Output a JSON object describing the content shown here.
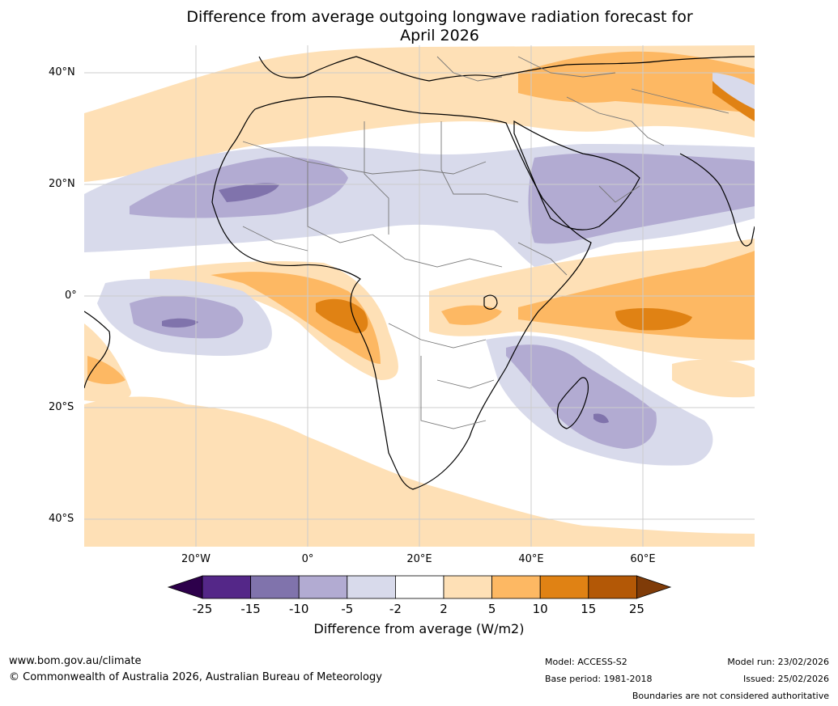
{
  "title": {
    "line1": "Difference from average outgoing longwave radiation forecast for",
    "line2": "April 2026"
  },
  "axes": {
    "latitude_labels": [
      "40°N",
      "20°N",
      "0°",
      "20°S",
      "40°S"
    ],
    "longitude_labels": [
      "20°W",
      "0°",
      "20°E",
      "40°E",
      "60°E"
    ]
  },
  "legend": {
    "title": "Difference from average (W/m2)",
    "tick_labels": [
      "-25",
      "-15",
      "-10",
      "-5",
      "-2",
      "2",
      "5",
      "10",
      "15",
      "25"
    ],
    "colors": [
      "#2d004b",
      "#542788",
      "#8073ac",
      "#b2abd2",
      "#d8daeb",
      "#ffffff",
      "#fee0b6",
      "#fdb863",
      "#e08214",
      "#b35806",
      "#7f3b08"
    ]
  },
  "footer": {
    "website": "www.bom.gov.au/climate",
    "copyright": "© Commonwealth of Australia 2026, Australian Bureau of Meteorology",
    "model": "Model: ACCESS-S2",
    "base_period": "Base period: 1981-2018",
    "model_run": "Model run: 23/02/2026",
    "issued": "Issued: 25/02/2026",
    "disclaimer": "Boundaries are not considered authoritative"
  }
}
